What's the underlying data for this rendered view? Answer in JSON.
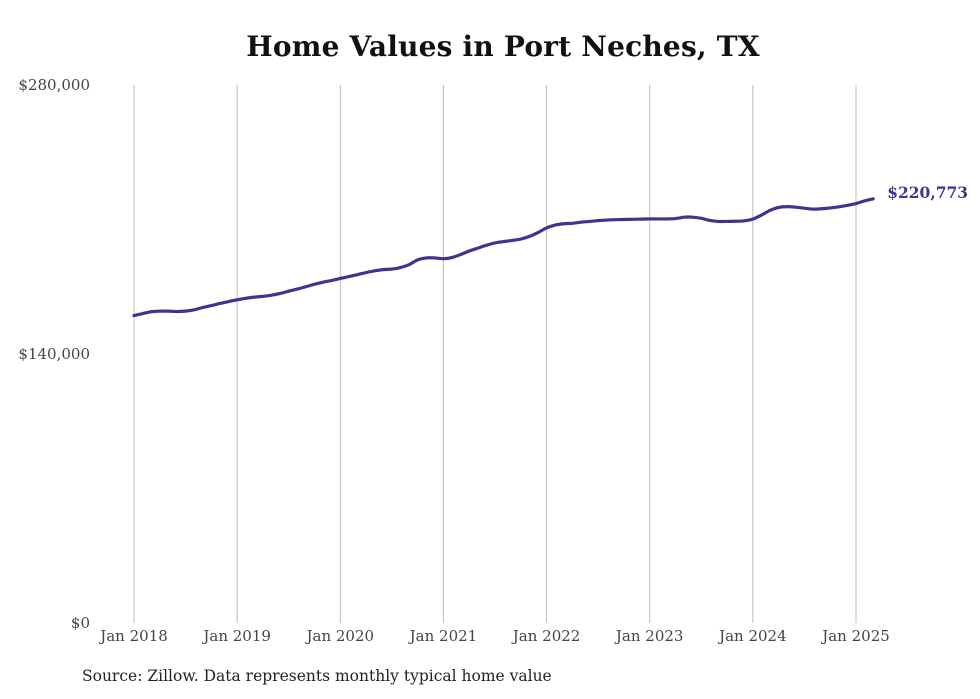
{
  "chart_data": {
    "type": "line",
    "title": "Home Values in Port Neches, TX",
    "source_note": "Source: Zillow. Data represents monthly typical home value",
    "ylim": [
      0,
      280000
    ],
    "y_ticks": [
      {
        "value": 0,
        "label": "$0"
      },
      {
        "value": 140000,
        "label": "$140,000"
      },
      {
        "value": 280000,
        "label": "$280,000"
      }
    ],
    "x_ticks": [
      {
        "value": "2018-01",
        "label": "Jan 2018"
      },
      {
        "value": "2019-01",
        "label": "Jan 2019"
      },
      {
        "value": "2020-01",
        "label": "Jan 2020"
      },
      {
        "value": "2021-01",
        "label": "Jan 2021"
      },
      {
        "value": "2022-01",
        "label": "Jan 2022"
      },
      {
        "value": "2023-01",
        "label": "Jan 2023"
      },
      {
        "value": "2024-01",
        "label": "Jan 2024"
      },
      {
        "value": "2025-01",
        "label": "Jan 2025"
      }
    ],
    "grid": {
      "vertical": true,
      "horizontal": false
    },
    "line_color": "#3d3590",
    "end_label": "$220,773",
    "series": [
      {
        "x": [
          "2018-01",
          "2018-02",
          "2018-03",
          "2018-04",
          "2018-05",
          "2018-06",
          "2018-07",
          "2018-08",
          "2018-09",
          "2018-10",
          "2018-11",
          "2018-12",
          "2019-01",
          "2019-02",
          "2019-03",
          "2019-04",
          "2019-05",
          "2019-06",
          "2019-07",
          "2019-08",
          "2019-09",
          "2019-10",
          "2019-11",
          "2019-12",
          "2020-01",
          "2020-02",
          "2020-03",
          "2020-04",
          "2020-05",
          "2020-06",
          "2020-07",
          "2020-08",
          "2020-09",
          "2020-10",
          "2020-11",
          "2020-12",
          "2021-01",
          "2021-02",
          "2021-03",
          "2021-04",
          "2021-05",
          "2021-06",
          "2021-07",
          "2021-08",
          "2021-09",
          "2021-10",
          "2021-11",
          "2021-12",
          "2022-01",
          "2022-02",
          "2022-03",
          "2022-04",
          "2022-05",
          "2022-06",
          "2022-07",
          "2022-08",
          "2022-09",
          "2022-10",
          "2022-11",
          "2022-12",
          "2023-01",
          "2023-02",
          "2023-03",
          "2023-04",
          "2023-05",
          "2023-06",
          "2023-07",
          "2023-08",
          "2023-09",
          "2023-10",
          "2023-11",
          "2023-12",
          "2024-01",
          "2024-02",
          "2024-03",
          "2024-04",
          "2024-05",
          "2024-06",
          "2024-07",
          "2024-08",
          "2024-09",
          "2024-10",
          "2024-11",
          "2024-12",
          "2025-01",
          "2025-02",
          "2025-03"
        ],
        "values": [
          160000,
          161000,
          162000,
          162300,
          162300,
          162100,
          162300,
          163000,
          164200,
          165200,
          166300,
          167300,
          168200,
          169000,
          169600,
          170000,
          170600,
          171500,
          172700,
          173800,
          175000,
          176300,
          177400,
          178300,
          179300,
          180300,
          181300,
          182400,
          183300,
          183900,
          184200,
          185000,
          186500,
          189000,
          190000,
          190000,
          189600,
          190200,
          191800,
          193600,
          195100,
          196600,
          197800,
          198500,
          199100,
          199800,
          201200,
          203200,
          205600,
          207100,
          207800,
          208000,
          208600,
          209000,
          209400,
          209700,
          209900,
          210000,
          210100,
          210200,
          210300,
          210300,
          210300,
          210500,
          211200,
          211200,
          210600,
          209500,
          209000,
          209000,
          209100,
          209300,
          210200,
          212300,
          214800,
          216300,
          216700,
          216400,
          215900,
          215400,
          215600,
          216000,
          216600,
          217400,
          218300,
          219700,
          220773
        ]
      }
    ]
  }
}
